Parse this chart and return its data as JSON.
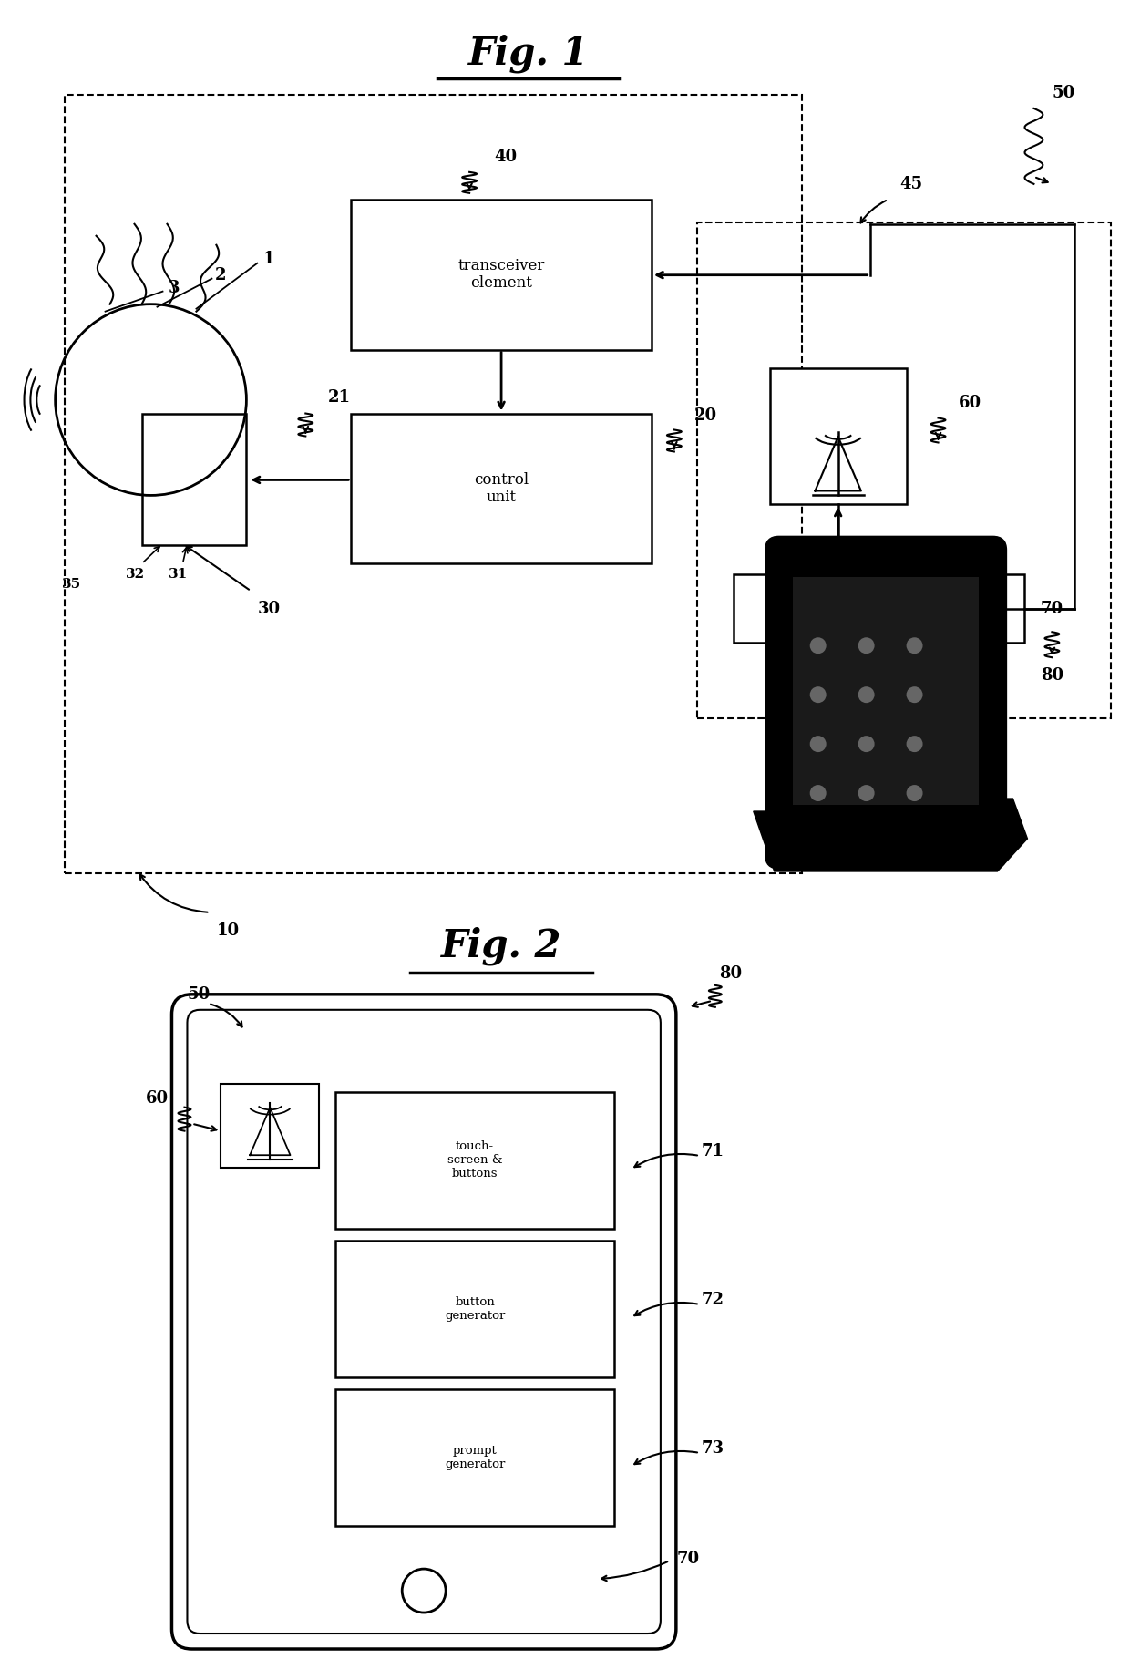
{
  "fig1_title": "Fig. 1",
  "fig2_title": "Fig. 2",
  "bg_color": "#ffffff",
  "figsize": [
    12.4,
    18.43
  ],
  "dpi": 100,
  "transceiver_text": "transceiver\nelement",
  "control_text": "control\nunit",
  "touchscreen_text": "touch-\nscreen &\nbuttons",
  "button_gen_text": "button\ngenerator",
  "prompt_gen_text": "prompt\ngenerator"
}
